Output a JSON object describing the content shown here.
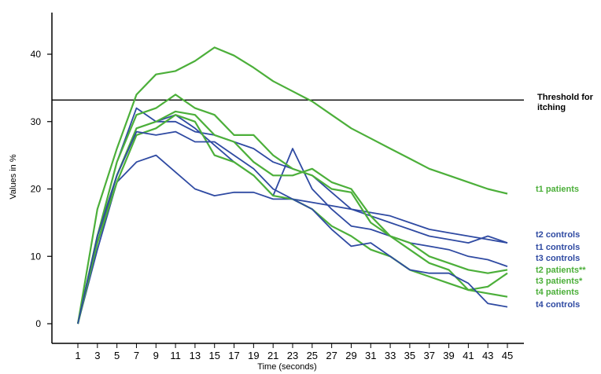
{
  "chart_data": {
    "type": "line",
    "xlabel": "Time (seconds)",
    "ylabel": "Values in %",
    "ylim": [
      0,
      45
    ],
    "xlim": [
      1,
      45
    ],
    "y_ticks": [
      "0",
      "10",
      "20",
      "30",
      "40"
    ],
    "x_ticks": [
      "1",
      "3",
      "5",
      "7",
      "9",
      "11",
      "13",
      "15",
      "17",
      "19",
      "21",
      "23",
      "25",
      "27",
      "29",
      "31",
      "33",
      "35",
      "37",
      "39",
      "41",
      "43",
      "45"
    ],
    "threshold": {
      "value": 33.2,
      "label_line1": "Threshold for",
      "label_line2": "itching"
    },
    "colors": {
      "patients": "#4caf3a",
      "controls": "#2f4aa2",
      "threshold": "#000000"
    },
    "grid": false,
    "series": [
      {
        "name": "t1 patients",
        "group": "patients",
        "x": [
          1,
          3,
          5,
          7,
          9,
          11,
          13,
          15,
          17,
          19,
          21,
          23,
          25,
          27,
          29,
          31,
          33,
          35,
          37,
          39,
          41,
          43,
          45
        ],
        "y": [
          0,
          17,
          26,
          34,
          37,
          37.5,
          39,
          41,
          39.8,
          38,
          36,
          34.5,
          33,
          31,
          29,
          27.5,
          26,
          24.5,
          23,
          22,
          21,
          20,
          19.3
        ]
      },
      {
        "name": "t2 controls",
        "group": "controls",
        "x": [
          1,
          3,
          5,
          7,
          9,
          11,
          13,
          15,
          17,
          19,
          21,
          23,
          25,
          27,
          29,
          31,
          33,
          35,
          37,
          39,
          41,
          43,
          45
        ],
        "y": [
          0,
          11,
          21,
          24,
          25,
          22.5,
          20,
          19,
          19.5,
          19.5,
          18.5,
          18.5,
          18,
          17.5,
          17,
          16.5,
          16,
          15,
          14,
          13.5,
          13,
          12.5,
          12
        ]
      },
      {
        "name": "t1 controls",
        "group": "controls",
        "x": [
          1,
          3,
          5,
          7,
          9,
          11,
          13,
          15,
          17,
          19,
          21,
          23,
          25,
          27,
          29,
          31,
          33,
          35,
          37,
          39,
          41,
          43,
          45
        ],
        "y": [
          0,
          12,
          22,
          29,
          30,
          30,
          28.5,
          28,
          27,
          26,
          24,
          23,
          22,
          19.5,
          17,
          16,
          15,
          14,
          13,
          12.5,
          12,
          13,
          12
        ]
      },
      {
        "name": "t3 controls",
        "group": "controls",
        "x": [
          1,
          3,
          5,
          7,
          9,
          11,
          13,
          15,
          17,
          19,
          21,
          23,
          25,
          27,
          29,
          31,
          33,
          35,
          37,
          39,
          41,
          43,
          45
        ],
        "y": [
          0,
          13,
          24,
          32,
          30,
          31,
          29,
          26.5,
          24,
          22,
          19,
          26,
          20,
          17,
          14.5,
          14,
          13,
          12,
          11.5,
          11,
          10,
          9.5,
          8.5
        ]
      },
      {
        "name": "t2 patients**",
        "group": "patients",
        "x": [
          1,
          3,
          5,
          7,
          9,
          11,
          13,
          15,
          17,
          19,
          21,
          23,
          25,
          27,
          29,
          31,
          33,
          35,
          37,
          39,
          41,
          43,
          45
        ],
        "y": [
          0,
          13,
          24,
          31,
          32,
          34,
          32,
          31,
          28,
          28,
          25,
          23,
          22,
          20,
          19.5,
          15,
          13,
          12,
          10,
          9,
          8,
          7.5,
          8
        ]
      },
      {
        "name": "t3 patients*",
        "group": "patients",
        "x": [
          1,
          3,
          5,
          7,
          9,
          11,
          13,
          15,
          17,
          19,
          21,
          23,
          25,
          27,
          29,
          31,
          33,
          35,
          37,
          39,
          41,
          43,
          45
        ],
        "y": [
          0,
          13,
          22,
          29,
          30,
          31.5,
          31,
          28,
          27,
          24,
          22,
          22,
          23,
          21,
          20,
          16,
          13,
          11,
          9,
          8,
          5,
          5.5,
          7.5
        ]
      },
      {
        "name": "t4 patients",
        "group": "patients",
        "x": [
          1,
          3,
          5,
          7,
          9,
          11,
          13,
          15,
          17,
          19,
          21,
          23,
          25,
          27,
          29,
          31,
          33,
          35,
          37,
          39,
          41,
          43,
          45
        ],
        "y": [
          0,
          12,
          21,
          28,
          29,
          31,
          30,
          25,
          24,
          22,
          19,
          18.5,
          17,
          14.5,
          13,
          11,
          10,
          8,
          7,
          6,
          5,
          4.5,
          4
        ]
      },
      {
        "name": "t4 controls",
        "group": "controls",
        "x": [
          1,
          3,
          5,
          7,
          9,
          11,
          13,
          15,
          17,
          19,
          21,
          23,
          25,
          27,
          29,
          31,
          33,
          35,
          37,
          39,
          41,
          43,
          45
        ],
        "y": [
          0,
          13,
          22,
          28.5,
          28,
          28.5,
          27,
          27,
          25,
          23,
          20,
          18.5,
          17,
          14,
          11.5,
          12,
          10,
          8,
          7.5,
          7.5,
          6,
          3,
          2.5
        ]
      }
    ],
    "legend_labels": [
      {
        "text": "t1 patients",
        "group": "patients"
      },
      {
        "text": "t2 controls",
        "group": "controls"
      },
      {
        "text": "t1 controls",
        "group": "controls"
      },
      {
        "text": "t3 controls",
        "group": "controls"
      },
      {
        "text": "t2 patients**",
        "group": "patients"
      },
      {
        "text": "t3 patients*",
        "group": "patients"
      },
      {
        "text": "t4 patients",
        "group": "patients"
      },
      {
        "text": "t4 controls",
        "group": "controls"
      }
    ]
  }
}
